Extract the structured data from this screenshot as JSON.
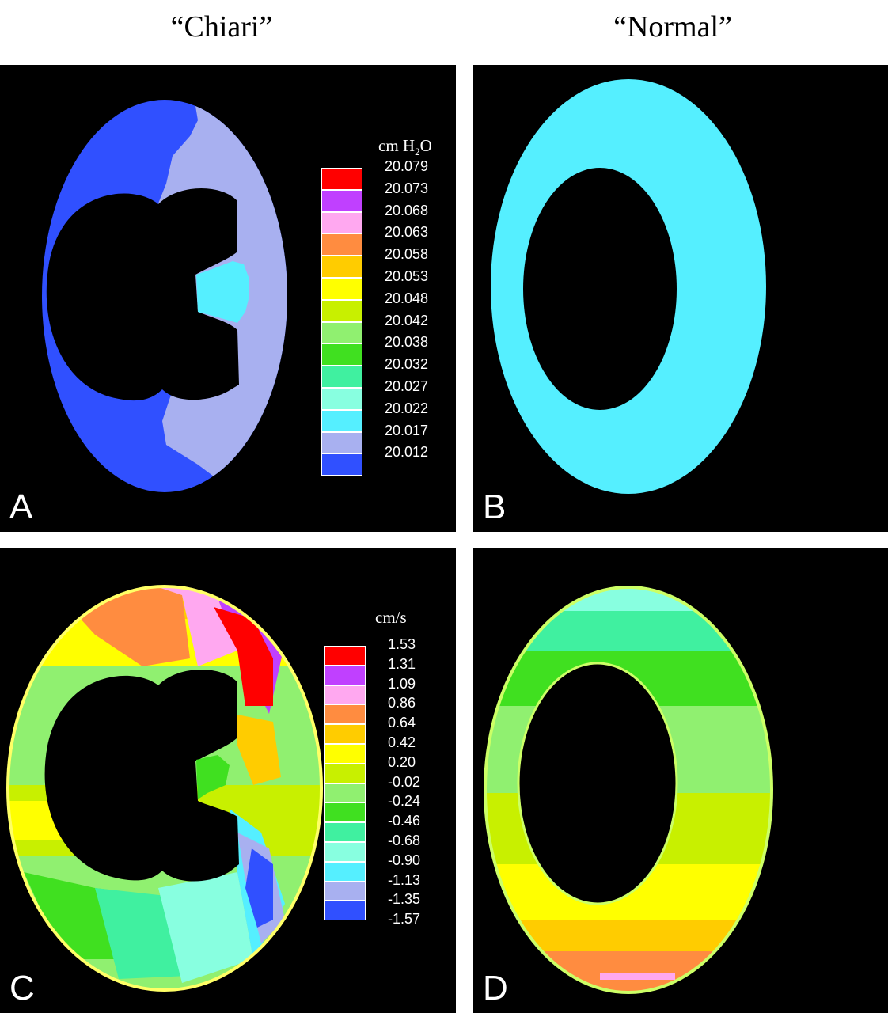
{
  "titles": {
    "left": "“Chiari”",
    "right": "“Normal”"
  },
  "panels": [
    {
      "letter": "A"
    },
    {
      "letter": "B"
    },
    {
      "letter": "C"
    },
    {
      "letter": "D"
    }
  ],
  "colors": {
    "ring_b": "#55efff"
  },
  "legend_pressure": {
    "unit_main": "cm H",
    "unit_sub": "2",
    "unit_tail": "O",
    "ticks": [
      "20.079",
      "20.073",
      "20.068",
      "20.063",
      "20.058",
      "20.053",
      "20.048",
      "20.042",
      "20.038",
      "20.032",
      "20.027",
      "20.022",
      "20.017",
      "20.012"
    ],
    "colors": [
      "#ff0000",
      "#c040ff",
      "#ffa8f0",
      "#ff8c40",
      "#ffcc00",
      "#ffff00",
      "#c8f000",
      "#90f070",
      "#40e020",
      "#40f0a0",
      "#88ffe0",
      "#55efff",
      "#a8b0f0",
      "#3050ff"
    ]
  },
  "legend_velocity": {
    "unit": "cm/s",
    "ticks": [
      "1.53",
      "1.31",
      "1.09",
      "0.86",
      "0.64",
      "0.42",
      "0.20",
      "-0.02",
      "-0.24",
      "-0.46",
      "-0.68",
      "-0.90",
      "-1.13",
      "-1.35",
      "-1.57"
    ],
    "colors": [
      "#ff0000",
      "#c040ff",
      "#ffa8f0",
      "#ff8c40",
      "#ffcc00",
      "#ffff00",
      "#c8f000",
      "#90f070",
      "#40e020",
      "#40f0a0",
      "#88ffe0",
      "#55efff",
      "#a8b0f0",
      "#3050ff"
    ]
  }
}
